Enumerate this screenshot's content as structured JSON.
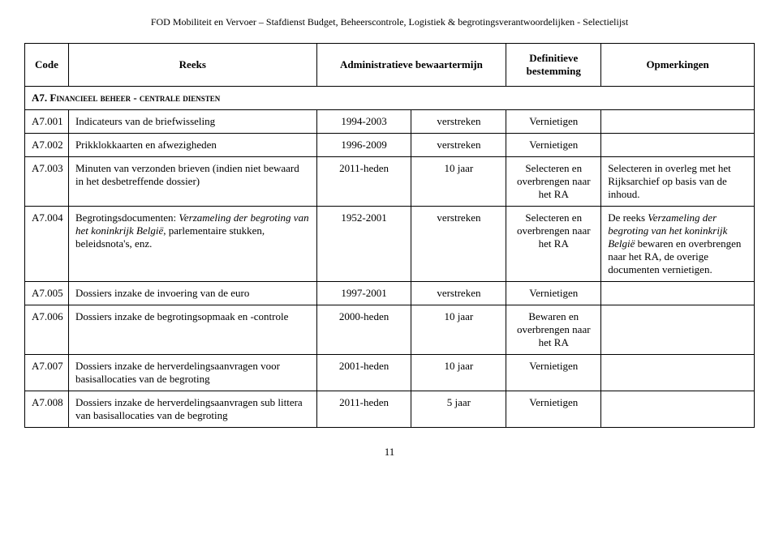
{
  "header_text": "FOD Mobiliteit en Vervoer – Stafdienst Budget, Beheerscontrole, Logistiek & begrotingsverantwoordelijken - Selectielijst",
  "columns": {
    "code": "Code",
    "reeks": "Reeks",
    "admin": "Administratieve bewaartermijn",
    "defin": "Definitieve bestemming",
    "opm": "Opmerkingen"
  },
  "section": "A7. Financieel beheer - centrale diensten",
  "rows": [
    {
      "code": "A7.001",
      "reeks": "Indicateurs van de briefwisseling",
      "admin_period": "1994-2003",
      "admin_status": "verstreken",
      "def": "Vernietigen",
      "opm": ""
    },
    {
      "code": "A7.002",
      "reeks": "Prikklokkaarten en afwezigheden",
      "admin_period": "1996-2009",
      "admin_status": "verstreken",
      "def": "Vernietigen",
      "opm": ""
    },
    {
      "code": "A7.003",
      "reeks": "Minuten van verzonden brieven (indien niet bewaard in het desbetreffende dossier)",
      "admin_period": "2011-heden",
      "admin_status": "10 jaar",
      "def": "Selecteren en overbrengen naar het RA",
      "opm": "Selecteren in overleg met het Rijksarchief op basis van de inhoud."
    },
    {
      "code": "A7.004",
      "reeks_html": "Begrotingsdocumenten: <em>Verzameling der begroting van het koninkrijk België</em>, parlementaire stukken, beleidsnota's, enz.",
      "admin_period": "1952-2001",
      "admin_status": "verstreken",
      "def": "Selecteren en overbrengen naar het RA",
      "opm_html": "De reeks <em>Verzameling der begroting van het koninkrijk België</em> bewaren en overbrengen naar het RA, de overige documenten vernietigen."
    },
    {
      "code": "A7.005",
      "reeks": "Dossiers inzake de invoering van de euro",
      "admin_period": "1997-2001",
      "admin_status": "verstreken",
      "def": "Vernietigen",
      "opm": ""
    },
    {
      "code": "A7.006",
      "reeks": "Dossiers inzake de begrotingsopmaak en -controle",
      "admin_period": "2000-heden",
      "admin_status": "10 jaar",
      "def": "Bewaren en overbrengen naar het RA",
      "opm": ""
    },
    {
      "code": "A7.007",
      "reeks": "Dossiers inzake de herverdelingsaanvragen voor basisallocaties van de begroting",
      "admin_period": "2001-heden",
      "admin_status": "10 jaar",
      "def": "Vernietigen",
      "opm": ""
    },
    {
      "code": "A7.008",
      "reeks": "Dossiers inzake de herverdelingsaanvragen sub littera van basisallocaties van de begroting",
      "admin_period": "2011-heden",
      "admin_status": "5 jaar",
      "def": "Vernietigen",
      "opm": ""
    }
  ],
  "page_number": "11"
}
